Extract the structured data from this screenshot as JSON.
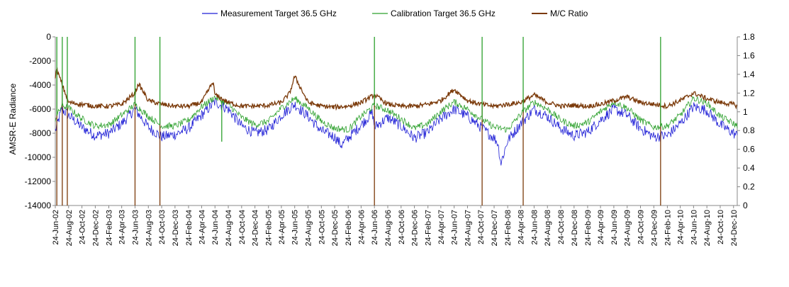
{
  "chart_data": {
    "type": "line",
    "legend_position": "top",
    "grid": false,
    "xlabel": "",
    "ylabel": "AMSR-E Radiance",
    "ylim": [
      -14000,
      0
    ],
    "y2lim": [
      0,
      1.8
    ],
    "yticks": [
      "0",
      "-2000",
      "-4000",
      "-6000",
      "-8000",
      "-10000",
      "-12000",
      "-14000"
    ],
    "y2ticks": [
      "1.8",
      "1.6",
      "1.4",
      "1.2",
      "1",
      "0.8",
      "0.6",
      "0.4",
      "0.2",
      "0"
    ],
    "xticks": [
      "24-Jun-02",
      "24-Aug-02",
      "24-Oct-02",
      "24-Dec-02",
      "24-Feb-03",
      "24-Apr-03",
      "24-Jun-03",
      "24-Aug-03",
      "24-Oct-03",
      "24-Dec-03",
      "24-Feb-04",
      "24-Apr-04",
      "24-Jun-04",
      "24-Aug-04",
      "24-Oct-04",
      "24-Dec-04",
      "24-Feb-05",
      "24-Apr-05",
      "24-Jun-05",
      "24-Aug-05",
      "24-Oct-05",
      "24-Dec-05",
      "24-Feb-06",
      "24-Apr-06",
      "24-Jun-06",
      "24-Aug-06",
      "24-Oct-06",
      "24-Dec-06",
      "24-Feb-07",
      "24-Apr-07",
      "24-Jun-07",
      "24-Aug-07",
      "24-Oct-07",
      "24-Dec-07",
      "24-Feb-08",
      "24-Apr-08",
      "24-Jun-08",
      "24-Aug-08",
      "24-Oct-08",
      "24-Dec-08",
      "24-Feb-09",
      "24-Apr-09",
      "24-Jun-09",
      "24-Aug-09",
      "24-Oct-09",
      "24-Dec-09",
      "24-Feb-10",
      "24-Apr-10",
      "24-Jun-10",
      "24-Aug-10",
      "24-Oct-10",
      "24-Dec-10"
    ],
    "series": [
      {
        "name": "Measurement Target 36.5 GHz",
        "axis": "left",
        "color": "#1f1fd6",
        "x": [
          "2002-06-24",
          "2002-07-24",
          "2002-08-24",
          "2002-10-24",
          "2002-12-24",
          "2003-02-24",
          "2003-04-24",
          "2003-06-24",
          "2003-08-24",
          "2003-10-24",
          "2003-12-24",
          "2004-02-24",
          "2004-04-24",
          "2004-06-24",
          "2004-08-24",
          "2004-10-24",
          "2004-12-24",
          "2005-02-24",
          "2005-04-24",
          "2005-06-24",
          "2005-08-24",
          "2005-10-24",
          "2005-12-24",
          "2006-01-24",
          "2006-02-24",
          "2006-04-24",
          "2006-06-15",
          "2006-06-24",
          "2006-08-24",
          "2006-10-24",
          "2006-12-24",
          "2007-02-24",
          "2007-04-24",
          "2007-06-24",
          "2007-08-24",
          "2007-10-24",
          "2007-12-24",
          "2008-01-10",
          "2008-01-24",
          "2008-02-24",
          "2008-04-24",
          "2008-06-24",
          "2008-08-24",
          "2008-10-24",
          "2008-12-24",
          "2009-02-24",
          "2009-04-24",
          "2009-06-24",
          "2009-08-24",
          "2009-10-24",
          "2009-12-24",
          "2010-02-24",
          "2010-04-24",
          "2010-06-24",
          "2010-08-24",
          "2010-10-24",
          "2010-12-24",
          "2011-01-10"
        ],
        "values": [
          -7800,
          -6000,
          -6500,
          -7500,
          -8200,
          -8000,
          -7200,
          -6000,
          -7500,
          -8300,
          -8100,
          -7600,
          -6500,
          -5400,
          -6000,
          -7400,
          -8000,
          -7700,
          -6500,
          -5600,
          -6600,
          -7800,
          -8300,
          -9000,
          -8400,
          -7300,
          -6300,
          -7500,
          -6700,
          -7400,
          -8400,
          -7900,
          -6800,
          -6000,
          -6600,
          -7500,
          -8400,
          -8800,
          -10500,
          -8600,
          -7200,
          -6000,
          -6600,
          -7600,
          -8200,
          -7900,
          -6900,
          -6000,
          -6500,
          -7600,
          -8300,
          -8200,
          -7200,
          -5800,
          -6100,
          -7300,
          -8000,
          -8200
        ]
      },
      {
        "name": "Calibration Target 36.5 GHz",
        "axis": "left",
        "color": "#2ca02c",
        "x": [
          "2002-06-24",
          "2002-07-24",
          "2002-08-24",
          "2002-10-24",
          "2002-12-24",
          "2003-02-24",
          "2003-04-24",
          "2003-06-24",
          "2003-08-24",
          "2003-10-24",
          "2003-12-24",
          "2004-02-24",
          "2004-04-24",
          "2004-06-24",
          "2004-08-24",
          "2004-10-24",
          "2004-12-24",
          "2005-02-24",
          "2005-04-24",
          "2005-06-24",
          "2005-08-24",
          "2005-10-24",
          "2005-12-24",
          "2006-02-24",
          "2006-04-24",
          "2006-06-24",
          "2006-08-24",
          "2006-10-24",
          "2006-12-24",
          "2007-02-24",
          "2007-04-24",
          "2007-06-24",
          "2007-08-24",
          "2007-10-24",
          "2007-12-24",
          "2008-02-24",
          "2008-04-24",
          "2008-06-24",
          "2008-08-24",
          "2008-10-24",
          "2008-12-24",
          "2009-02-24",
          "2009-04-24",
          "2009-06-24",
          "2009-08-24",
          "2009-10-24",
          "2009-12-24",
          "2010-02-24",
          "2010-04-24",
          "2010-06-24",
          "2010-08-24",
          "2010-10-24",
          "2010-12-24",
          "2011-01-10"
        ],
        "values": [
          -6800,
          -5700,
          -5900,
          -6800,
          -7400,
          -7300,
          -6500,
          -5600,
          -6600,
          -7400,
          -7400,
          -6900,
          -5800,
          -5000,
          -5600,
          -6700,
          -7300,
          -7000,
          -5900,
          -5100,
          -5900,
          -7000,
          -7600,
          -7700,
          -6600,
          -5700,
          -6100,
          -6800,
          -7600,
          -7200,
          -6200,
          -5400,
          -6000,
          -6800,
          -7500,
          -7700,
          -6400,
          -5400,
          -6000,
          -6900,
          -7400,
          -7100,
          -6200,
          -5400,
          -5900,
          -6900,
          -7500,
          -7400,
          -6500,
          -5100,
          -5500,
          -6600,
          -7200,
          -7400
        ]
      },
      {
        "name": "M/C Ratio",
        "axis": "right",
        "color": "#7b3a0a",
        "x": [
          "2002-06-24",
          "2002-07-01",
          "2002-08-24",
          "2002-10-24",
          "2002-12-24",
          "2003-02-24",
          "2003-04-24",
          "2003-06-24",
          "2003-07-10",
          "2003-08-24",
          "2003-10-24",
          "2003-12-24",
          "2004-02-24",
          "2004-04-24",
          "2004-06-15",
          "2004-06-24",
          "2004-08-24",
          "2004-10-24",
          "2004-12-24",
          "2005-02-24",
          "2005-04-24",
          "2005-06-01",
          "2005-06-24",
          "2005-08-24",
          "2005-10-24",
          "2005-12-24",
          "2006-02-24",
          "2006-04-24",
          "2006-06-24",
          "2006-08-24",
          "2006-10-24",
          "2006-12-24",
          "2007-02-24",
          "2007-04-24",
          "2007-06-24",
          "2007-08-24",
          "2007-10-24",
          "2007-12-24",
          "2008-02-24",
          "2008-04-24",
          "2008-06-24",
          "2008-08-24",
          "2008-10-24",
          "2008-12-24",
          "2009-02-24",
          "2009-04-24",
          "2009-06-24",
          "2009-08-24",
          "2009-10-24",
          "2009-12-24",
          "2010-02-24",
          "2010-04-24",
          "2010-06-24",
          "2010-08-24",
          "2010-10-24",
          "2010-12-24",
          "2011-01-10"
        ],
        "values": [
          1.38,
          1.45,
          1.1,
          1.08,
          1.06,
          1.06,
          1.08,
          1.2,
          1.3,
          1.12,
          1.08,
          1.06,
          1.06,
          1.1,
          1.32,
          1.18,
          1.1,
          1.06,
          1.06,
          1.07,
          1.1,
          1.2,
          1.38,
          1.1,
          1.06,
          1.05,
          1.06,
          1.1,
          1.18,
          1.08,
          1.06,
          1.06,
          1.08,
          1.12,
          1.24,
          1.12,
          1.08,
          1.06,
          1.08,
          1.1,
          1.18,
          1.1,
          1.06,
          1.07,
          1.06,
          1.08,
          1.12,
          1.16,
          1.1,
          1.08,
          1.06,
          1.12,
          1.2,
          1.14,
          1.1,
          1.08,
          1.06
        ]
      }
    ],
    "spikes": [
      {
        "series": "M/C Ratio",
        "x": [
          "2002-07-01",
          "2002-07-26",
          "2002-08-18",
          "2003-06-24",
          "2003-10-16",
          "2006-06-24",
          "2007-10-30",
          "2008-05-05",
          "2010-01-24"
        ],
        "value": 0
      },
      {
        "series": "Calibration Target 36.5 GHz",
        "x": [
          "2002-07-01",
          "2002-07-26",
          "2002-08-18",
          "2003-06-24",
          "2003-10-16",
          "2006-06-24",
          "2007-10-30",
          "2008-05-05",
          "2010-01-24"
        ],
        "value": 0
      },
      {
        "series": "Calibration Target 36.5 GHz",
        "x": [
          "2004-07-25"
        ],
        "value": -8700
      }
    ]
  }
}
